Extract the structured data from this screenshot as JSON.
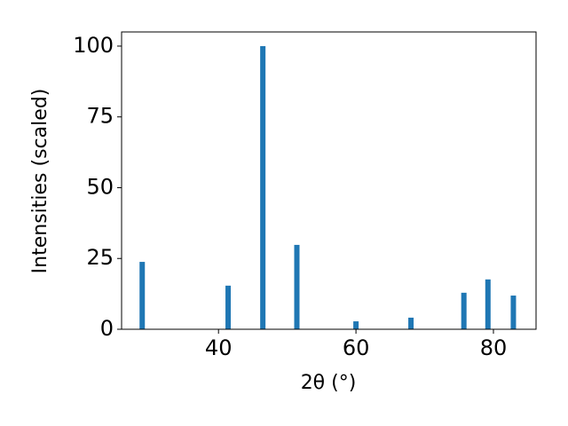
{
  "chart_data": {
    "type": "bar",
    "x": [
      28.9,
      41.4,
      46.45,
      51.4,
      60.0,
      68.0,
      75.7,
      79.2,
      82.9
    ],
    "values": [
      23.8,
      15.4,
      100,
      29.8,
      2.8,
      4.1,
      12.9,
      17.6,
      11.9
    ],
    "color": "#1f77b4",
    "xlabel": "2θ (°)",
    "ylabel": "Intensities (scaled)",
    "xlim": [
      25.9,
      86.2
    ],
    "ylim": [
      0,
      105
    ],
    "xticks": [
      40,
      60,
      80
    ],
    "yticks": [
      0,
      25,
      50,
      75,
      100
    ]
  }
}
